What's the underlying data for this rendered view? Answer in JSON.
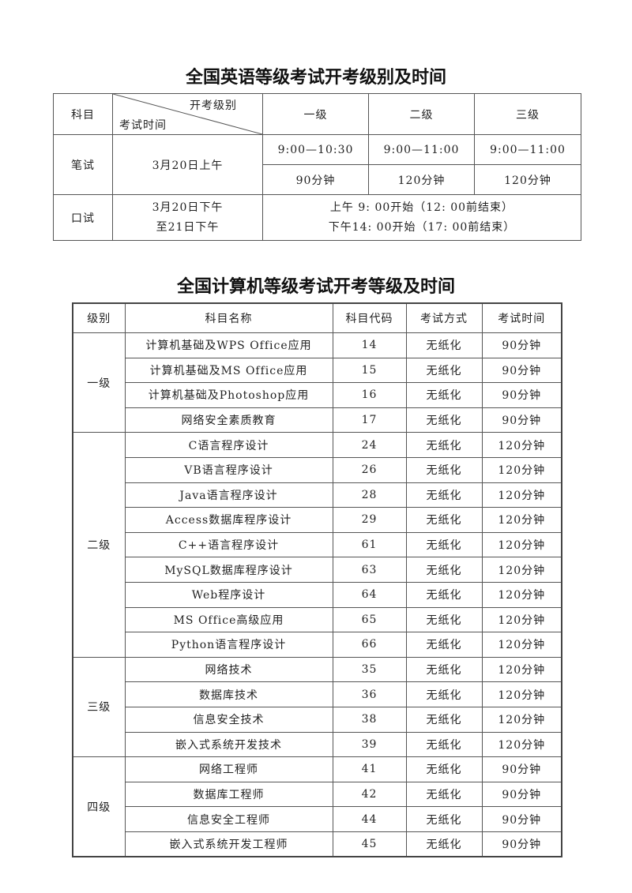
{
  "english": {
    "title": "全国英语等级考试开考级别及时间",
    "header": {
      "subject": "科目",
      "diag_top": "开考级别",
      "diag_bottom": "考试时间",
      "levels": [
        "一级",
        "二级",
        "三级"
      ]
    },
    "written": {
      "label": "笔试",
      "date": "3月20日上午",
      "times": [
        "9:00—10:30",
        "9:00—11:00",
        "9:00—11:00"
      ],
      "durations": [
        "90分钟",
        "120分钟",
        "120分钟"
      ]
    },
    "oral": {
      "label": "口试",
      "date_line1": "3月20日下午",
      "date_line2": "至21日下午",
      "time_line1": "上午 9: 00开始（12: 00前结束）",
      "time_line2": "下午14: 00开始（17: 00前结束）"
    }
  },
  "computer": {
    "title": "全国计算机等级考试开考等级及时间",
    "headers": [
      "级别",
      "科目名称",
      "科目代码",
      "考试方式",
      "考试时间"
    ],
    "groups": [
      {
        "level": "一级",
        "rows": [
          [
            "计算机基础及WPS Office应用",
            "14",
            "无纸化",
            "90分钟"
          ],
          [
            "计算机基础及MS Office应用",
            "15",
            "无纸化",
            "90分钟"
          ],
          [
            "计算机基础及Photoshop应用",
            "16",
            "无纸化",
            "90分钟"
          ],
          [
            "网络安全素质教育",
            "17",
            "无纸化",
            "90分钟"
          ]
        ]
      },
      {
        "level": "二级",
        "rows": [
          [
            "C语言程序设计",
            "24",
            "无纸化",
            "120分钟"
          ],
          [
            "VB语言程序设计",
            "26",
            "无纸化",
            "120分钟"
          ],
          [
            "Java语言程序设计",
            "28",
            "无纸化",
            "120分钟"
          ],
          [
            "Access数据库程序设计",
            "29",
            "无纸化",
            "120分钟"
          ],
          [
            "C++语言程序设计",
            "61",
            "无纸化",
            "120分钟"
          ],
          [
            "MySQL数据库程序设计",
            "63",
            "无纸化",
            "120分钟"
          ],
          [
            "Web程序设计",
            "64",
            "无纸化",
            "120分钟"
          ],
          [
            "MS Office高级应用",
            "65",
            "无纸化",
            "120分钟"
          ],
          [
            "Python语言程序设计",
            "66",
            "无纸化",
            "120分钟"
          ]
        ]
      },
      {
        "level": "三级",
        "rows": [
          [
            "网络技术",
            "35",
            "无纸化",
            "120分钟"
          ],
          [
            "数据库技术",
            "36",
            "无纸化",
            "120分钟"
          ],
          [
            "信息安全技术",
            "38",
            "无纸化",
            "120分钟"
          ],
          [
            "嵌入式系统开发技术",
            "39",
            "无纸化",
            "120分钟"
          ]
        ]
      },
      {
        "level": "四级",
        "rows": [
          [
            "网络工程师",
            "41",
            "无纸化",
            "90分钟"
          ],
          [
            "数据库工程师",
            "42",
            "无纸化",
            "90分钟"
          ],
          [
            "信息安全工程师",
            "44",
            "无纸化",
            "90分钟"
          ],
          [
            "嵌入式系统开发工程师",
            "45",
            "无纸化",
            "90分钟"
          ]
        ]
      }
    ]
  }
}
